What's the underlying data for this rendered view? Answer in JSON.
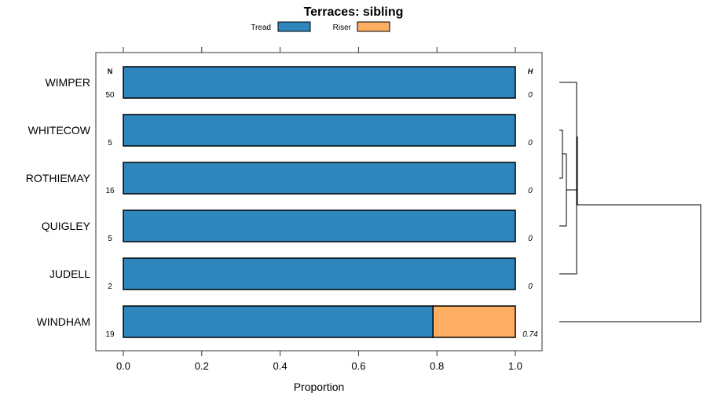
{
  "chart_data": {
    "type": "bar",
    "stacked": true,
    "orientation": "horizontal",
    "title": "Terraces: sibling",
    "xlabel": "Proportion",
    "ylabel": "",
    "xlim": [
      0,
      1
    ],
    "xticks": [
      "0.0",
      "0.2",
      "0.4",
      "0.6",
      "0.8",
      "1.0"
    ],
    "legend": {
      "placement": "top",
      "entries": [
        "Tread",
        "Riser"
      ]
    },
    "colors": {
      "Tread": "#2e86bd",
      "Riser": "#fdae61"
    },
    "n_header": "N",
    "h_header": "H",
    "categories": [
      "WIMPER",
      "WHITECOW",
      "ROTHIEMAY",
      "QUIGLEY",
      "JUDELL",
      "WINDHAM"
    ],
    "n": [
      "50",
      "5",
      "16",
      "5",
      "2",
      "19"
    ],
    "h": [
      "0",
      "0",
      "0",
      "0",
      "0",
      "0.74"
    ],
    "series": [
      {
        "name": "Tread",
        "values": [
          1,
          1,
          1,
          1,
          1,
          0.79
        ]
      },
      {
        "name": "Riser",
        "values": [
          0,
          0,
          0,
          0,
          0,
          0.21
        ]
      }
    ],
    "dendrogram": "clustering of rows shown at right"
  }
}
